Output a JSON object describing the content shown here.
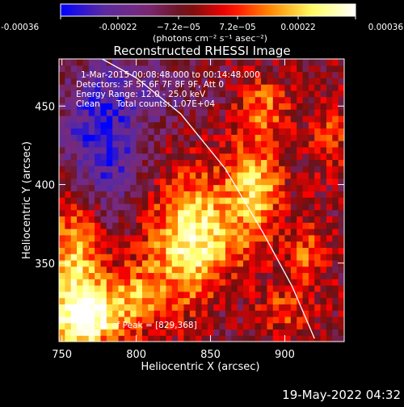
{
  "chart_data": {
    "type": "heatmap",
    "title": "Reconstructed RHESSI Image",
    "xlabel": "Heliocentric X (arcsec)",
    "ylabel": "Heliocentric Y (arcsec)",
    "xlim": [
      748,
      940
    ],
    "ylim": [
      300,
      480
    ],
    "x_ticks": [
      750,
      800,
      850,
      900
    ],
    "y_ticks": [
      350,
      400,
      450
    ],
    "colorbar": {
      "ticks": [
        "-0.00036",
        "-0.00022",
        "−7.2e−05",
        "7.2e−05",
        "0.00022",
        "0.00036"
      ],
      "tick_values": [
        -0.00036,
        -0.00022,
        -7.2e-05,
        7.2e-05,
        0.00022,
        0.00036
      ],
      "range": [
        -0.00036,
        0.00036
      ],
      "label": "(photons cm⁻² s⁻¹ asec⁻²)",
      "colors": [
        "#0000ff",
        "#5a2aa0",
        "#7a2a7a",
        "#6a1010",
        "#ff0000",
        "#ff8c00",
        "#ffff66",
        "#ffffff"
      ]
    },
    "annotations": {
      "time_range": "1-Mar-2015 00:08:48.000 to 00:14:48.000",
      "detectors": "Detectors: 3F 5F 6F 7F 8F 9F, Att 0",
      "energy": "Energy Range: 12.0 - 25.0 keV",
      "method": "Clean",
      "counts": "Total counts: 1.07E+04",
      "peak": "Position of Peak = [829,368]"
    },
    "peak_position": [
      829,
      368
    ],
    "limb_curve": [
      [
        777,
        480
      ],
      [
        800,
        468
      ],
      [
        830,
        445
      ],
      [
        860,
        410
      ],
      [
        885,
        370
      ],
      [
        905,
        335
      ],
      [
        920,
        302
      ]
    ],
    "blobs": [
      {
        "x": 840,
        "y": 365,
        "sx": 22,
        "sy": 28,
        "amp": 0.00036
      },
      {
        "x": 760,
        "y": 350,
        "sx": 14,
        "sy": 40,
        "amp": 0.0003
      },
      {
        "x": 770,
        "y": 315,
        "sx": 18,
        "sy": 12,
        "amp": 0.00028
      },
      {
        "x": 880,
        "y": 400,
        "sx": 12,
        "sy": 22,
        "amp": 0.00026
      },
      {
        "x": 885,
        "y": 450,
        "sx": 12,
        "sy": 12,
        "amp": 0.00018
      },
      {
        "x": 915,
        "y": 355,
        "sx": 10,
        "sy": 14,
        "amp": 0.00016
      },
      {
        "x": 900,
        "y": 320,
        "sx": 12,
        "sy": 10,
        "amp": 0.00014
      },
      {
        "x": 800,
        "y": 330,
        "sx": 14,
        "sy": 14,
        "amp": 0.00018
      },
      {
        "x": 930,
        "y": 430,
        "sx": 10,
        "sy": 16,
        "amp": 0.00012
      },
      {
        "x": 775,
        "y": 425,
        "sx": 20,
        "sy": 35,
        "amp": -0.0003
      },
      {
        "x": 820,
        "y": 460,
        "sx": 25,
        "sy": 15,
        "amp": -0.0001
      },
      {
        "x": 860,
        "y": 330,
        "sx": 12,
        "sy": 20,
        "amp": -8e-05
      }
    ]
  },
  "footer": {
    "date": "19-May-2022 04:32"
  }
}
